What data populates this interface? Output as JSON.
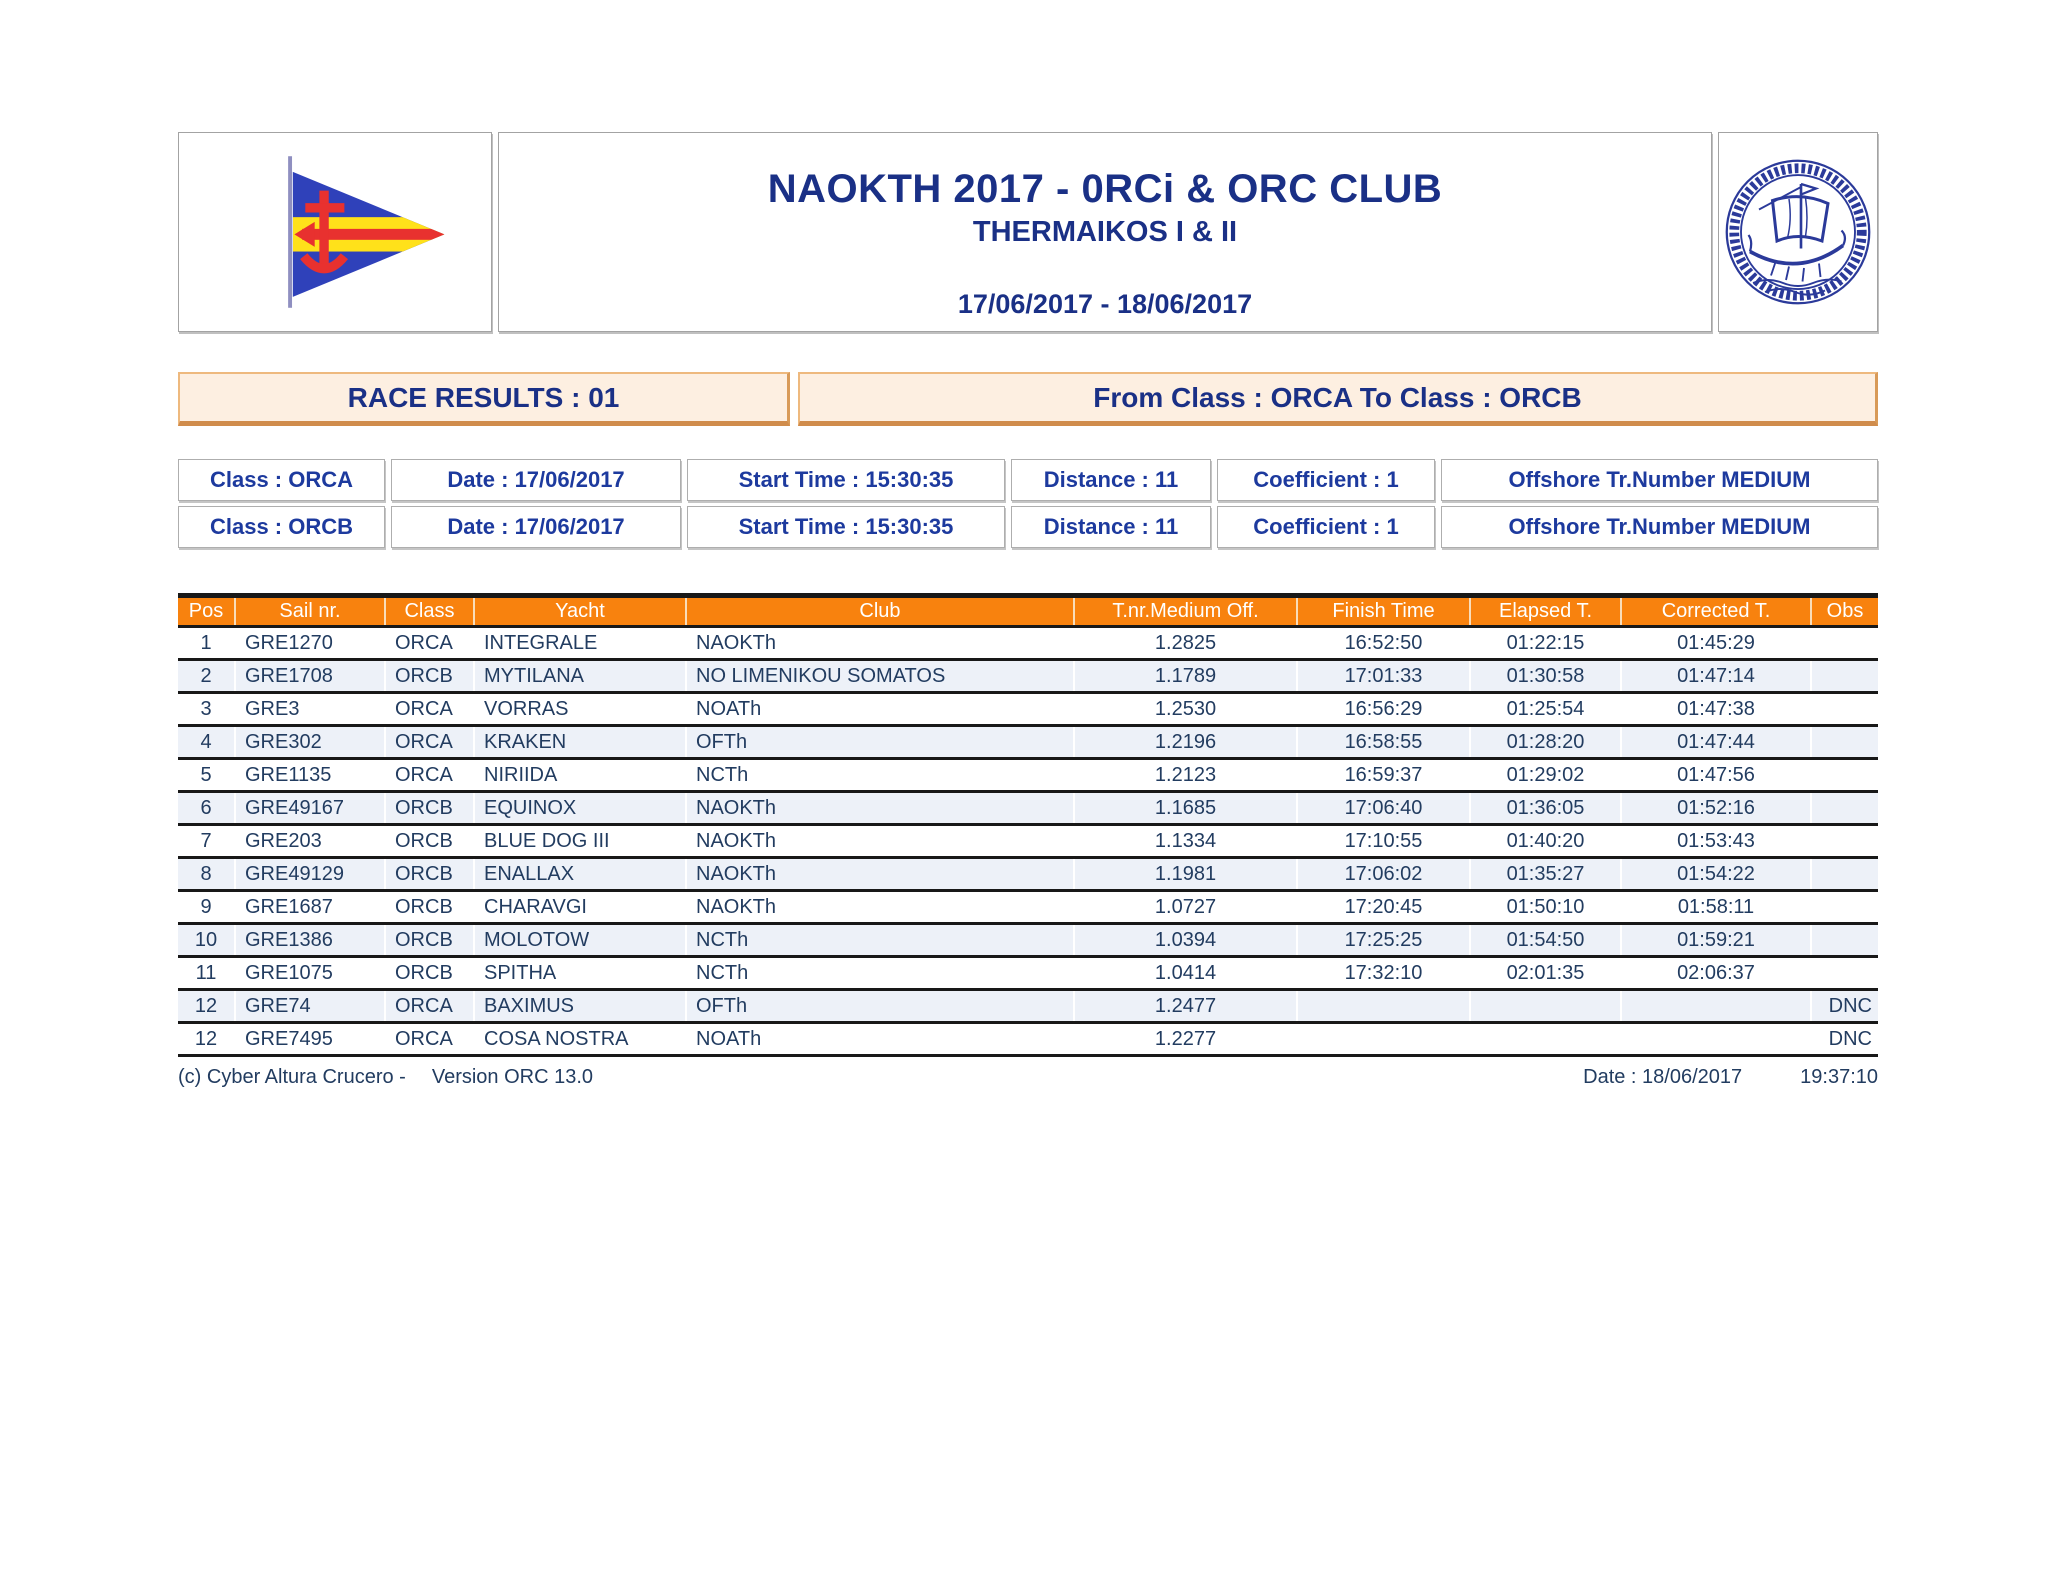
{
  "header": {
    "title": "NAOKTH 2017 - 0RCi & ORC CLUB",
    "subtitle": "THERMAIKOS I & II",
    "date_range": "17/06/2017 - 18/06/2017",
    "left_logo": "club-burgee-pennant",
    "right_logo": "naokth-circular-seal-ancient-ship"
  },
  "race_bar": {
    "left_label": "RACE RESULTS : 01",
    "right_label": "From Class : ORCA To Class : ORCB"
  },
  "class_info": {
    "rows": [
      [
        "Class : ORCA",
        "Date : 17/06/2017",
        "Start Time : 15:30:35",
        "Distance : 11",
        "Coefficient : 1",
        "Offshore Tr.Number MEDIUM"
      ],
      [
        "Class : ORCB",
        "Date : 17/06/2017",
        "Start Time : 15:30:35",
        "Distance : 11",
        "Coefficient : 1",
        "Offshore Tr.Number MEDIUM"
      ]
    ]
  },
  "results_table": {
    "columns": [
      "Pos",
      "Sail nr.",
      "Class",
      "Yacht",
      "Club",
      "T.nr.Medium Off.",
      "Finish Time",
      "Elapsed T.",
      "Corrected T.",
      "Obs"
    ],
    "rows": [
      [
        "1",
        "GRE1270",
        "ORCA",
        "INTEGRALE",
        "NAOKTh",
        "1.2825",
        "16:52:50",
        "01:22:15",
        "01:45:29",
        ""
      ],
      [
        "2",
        "GRE1708",
        "ORCB",
        "MYTILANA",
        "NO LIMENIKOU SOMATOS",
        "1.1789",
        "17:01:33",
        "01:30:58",
        "01:47:14",
        ""
      ],
      [
        "3",
        "GRE3",
        "ORCA",
        "VORRAS",
        "NOATh",
        "1.2530",
        "16:56:29",
        "01:25:54",
        "01:47:38",
        ""
      ],
      [
        "4",
        "GRE302",
        "ORCA",
        "KRAKEN",
        "OFTh",
        "1.2196",
        "16:58:55",
        "01:28:20",
        "01:47:44",
        ""
      ],
      [
        "5",
        "GRE1135",
        "ORCA",
        "NIRIIDA",
        "NCTh",
        "1.2123",
        "16:59:37",
        "01:29:02",
        "01:47:56",
        ""
      ],
      [
        "6",
        "GRE49167",
        "ORCB",
        "EQUINOX",
        "NAOKTh",
        "1.1685",
        "17:06:40",
        "01:36:05",
        "01:52:16",
        ""
      ],
      [
        "7",
        "GRE203",
        "ORCB",
        "BLUE DOG III",
        "NAOKTh",
        "1.1334",
        "17:10:55",
        "01:40:20",
        "01:53:43",
        ""
      ],
      [
        "8",
        "GRE49129",
        "ORCB",
        "ENALLAX",
        "NAOKTh",
        "1.1981",
        "17:06:02",
        "01:35:27",
        "01:54:22",
        ""
      ],
      [
        "9",
        "GRE1687",
        "ORCB",
        "CHARAVGI",
        "NAOKTh",
        "1.0727",
        "17:20:45",
        "01:50:10",
        "01:58:11",
        ""
      ],
      [
        "10",
        "GRE1386",
        "ORCB",
        "MOLOTOW",
        "NCTh",
        "1.0394",
        "17:25:25",
        "01:54:50",
        "01:59:21",
        ""
      ],
      [
        "11",
        "GRE1075",
        "ORCB",
        "SPITHA",
        "NCTh",
        "1.0414",
        "17:32:10",
        "02:01:35",
        "02:06:37",
        ""
      ],
      [
        "12",
        "GRE74",
        "ORCA",
        "BAXIMUS",
        "OFTh",
        "1.2477",
        "",
        "",
        "",
        "DNC"
      ],
      [
        "12",
        "GRE7495",
        "ORCA",
        "COSA NOSTRA",
        "NOATh",
        "1.2277",
        "",
        "",
        "",
        "DNC"
      ]
    ]
  },
  "footer": {
    "copyright": "(c) Cyber Altura Crucero -",
    "version": "Version ORC 13.0",
    "date": "Date : 18/06/2017",
    "time": "19:37:10"
  },
  "colors": {
    "navy": "#1a3086",
    "royal": "#1d3a9e",
    "orange": "#f8820e",
    "stripe": "#edf1f8",
    "peach": "#fdefe1",
    "darktext": "#223c60",
    "seal": "#2b3a9a",
    "line": "#181818"
  }
}
